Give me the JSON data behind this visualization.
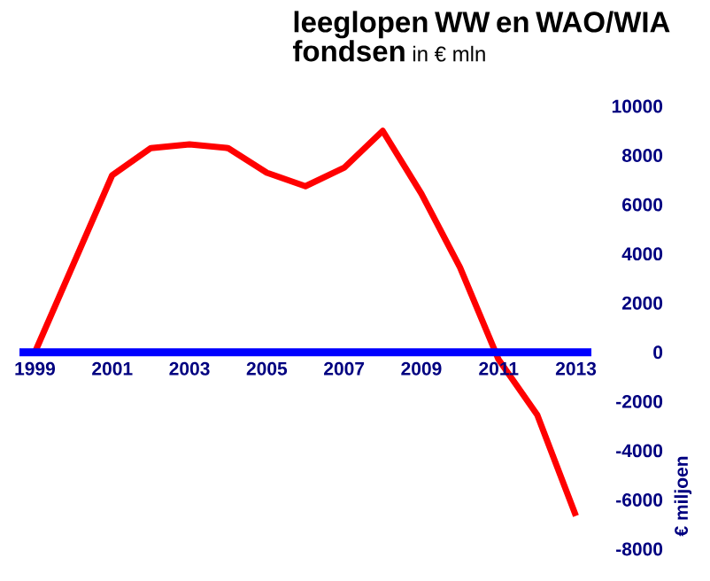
{
  "chart_data": {
    "type": "line",
    "title": "leeglopen WW en WAO/WIA fondsen",
    "subtitle": "in € mln",
    "ylabel": "€ miljoen",
    "x": [
      1999,
      2001,
      2002,
      2003,
      2004,
      2005,
      2006,
      2007,
      2008,
      2009,
      2010,
      2011,
      2012,
      2013
    ],
    "series": [
      {
        "color": "#ff0000",
        "values": [
          0,
          7200,
          8300,
          8450,
          8300,
          7300,
          6750,
          7500,
          9000,
          6450,
          3450,
          -300,
          -2550,
          -6650
        ]
      }
    ],
    "xlim": [
      1998.6,
      2013.4
    ],
    "ylim": [
      -8000,
      10000
    ],
    "xticks": [
      1999,
      2001,
      2003,
      2005,
      2007,
      2009,
      2011,
      2013
    ],
    "yticks": [
      -8000,
      -6000,
      -4000,
      -2000,
      0,
      2000,
      4000,
      6000,
      8000,
      10000
    ]
  }
}
